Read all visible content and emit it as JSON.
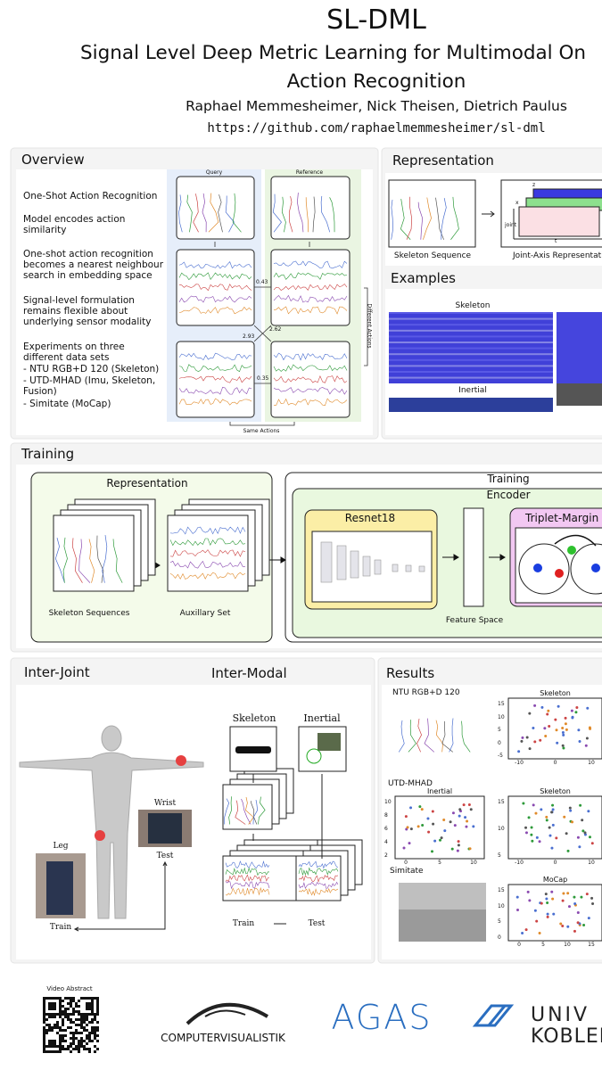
{
  "header": {
    "title": "SL-DML",
    "subtitle": [
      "Signal Level Deep Metric Learning for Multimodal On",
      "Action Recognition"
    ],
    "authors": "Raphael Memmesheimer, Nick Theisen, Dietrich Paulus",
    "url": "https://github.com/raphaelmemmesheimer/sl-dml"
  },
  "overview": {
    "heading": "Overview",
    "items": [
      "One-Shot Action Recognition",
      "Model encodes action similarity",
      "One-shot action recognition becomes a nearest neighbour search in embedding space",
      "Signal-level formulation remains flexible about underlying sensor modality"
    ],
    "experiments": {
      "intro": "Experiments on three different data sets",
      "sets": [
        "- NTU RGB+D 120 (Skeleton)",
        "- UTD-MHAD (Imu, Skeleton, Fusion)",
        "- Simitate (MoCap)"
      ]
    },
    "figure": {
      "query": "Query",
      "reference": "Reference",
      "distances": [
        "0.43",
        "2.93",
        "2.62",
        "0.35"
      ],
      "different": "Different Actions",
      "same": "Same Actions"
    }
  },
  "representation": {
    "heading": "Representation",
    "skeleton_caption": "Skeleton Sequence",
    "joint_axis_caption": "Joint-Axis Representatio",
    "axes": [
      "z",
      "x",
      "joint",
      "t"
    ],
    "examples_heading": "Examples",
    "skeleton_label": "Skeleton",
    "inertial_label": "Inertial"
  },
  "training": {
    "heading": "Training",
    "representation_title": "Representation",
    "skeleton_caption": "Skeleton Sequences",
    "auxiliary_caption": "Auxillary Set",
    "training_title": "Training",
    "encoder_title": "Encoder",
    "resnet_title": "Resnet18",
    "feature_space": "Feature Space",
    "loss_title": "Triplet-Margin"
  },
  "inter_joint": {
    "heading": "Inter-Joint",
    "wrist": "Wrist",
    "test": "Test",
    "leg": "Leg",
    "train": "Train"
  },
  "inter_modal": {
    "heading": "Inter-Modal",
    "skeleton": "Skeleton",
    "inertial": "Inertial",
    "train": "Train",
    "test": "Test"
  },
  "results": {
    "heading": "Results",
    "datasets": [
      "NTU RGB+D 120",
      "UTD-MHAD",
      "Simitate"
    ],
    "plots": [
      {
        "title": "Skeleton",
        "yticks": [
          "15",
          "10",
          "5",
          "0",
          "-5"
        ],
        "xticks": [
          "-10",
          "0",
          "10"
        ]
      },
      {
        "title": "Inertial",
        "yticks": [
          "10",
          "8",
          "6",
          "4",
          "2"
        ],
        "xticks": [
          "0",
          "5",
          "10"
        ]
      },
      {
        "title": "Skeleton",
        "yticks": [
          "15",
          "10",
          "5"
        ],
        "xticks": [
          "-10",
          "0",
          "10"
        ]
      },
      {
        "title": "MoCap",
        "yticks": [
          "15",
          "10",
          "5",
          "0"
        ],
        "xticks": [
          "0",
          "5",
          "10",
          "15"
        ]
      }
    ]
  },
  "footer": {
    "video": "Video Abstract",
    "logo1": "COMPUTERVISUALISTIK",
    "logo2": "AGAS",
    "logo3": [
      "UNIV",
      "KOBLEN"
    ]
  }
}
